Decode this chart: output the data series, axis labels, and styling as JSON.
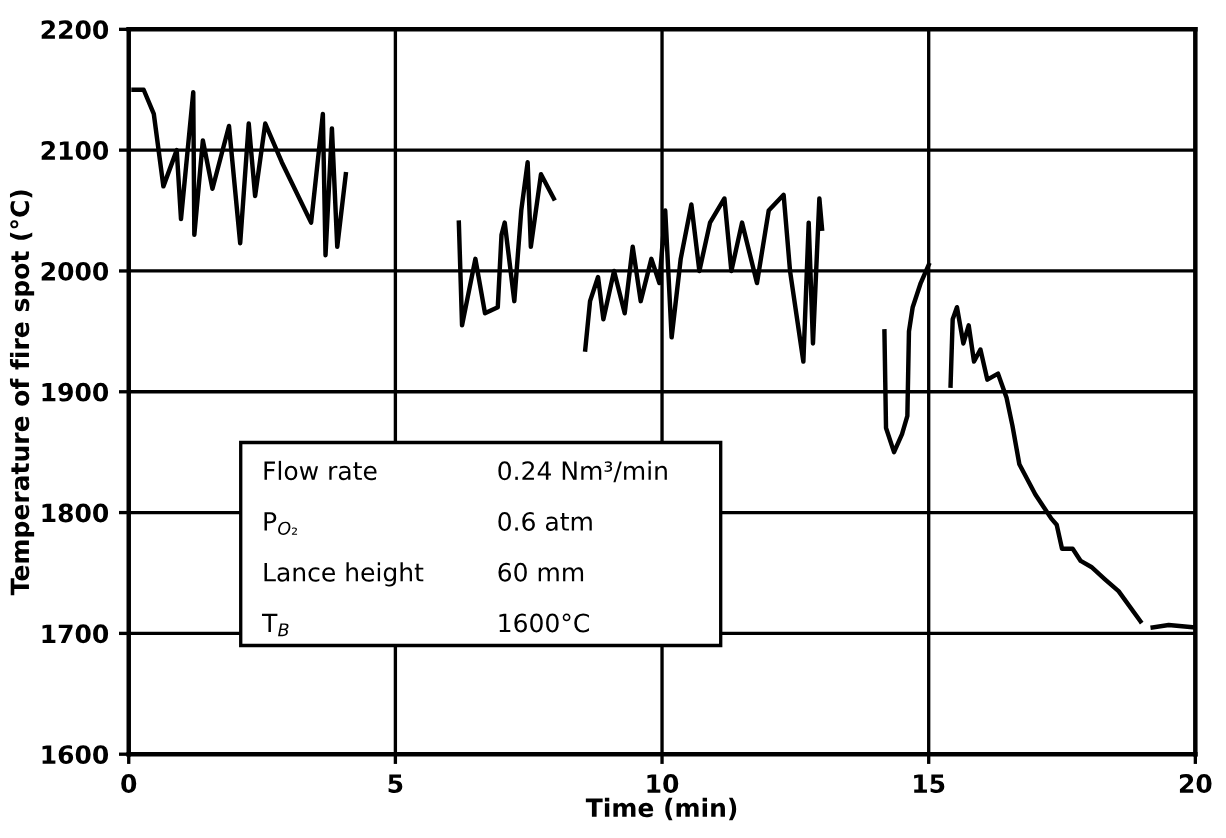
{
  "chart_data": {
    "type": "line",
    "xlabel": "Time (min)",
    "ylabel": "Temperature of fire spot (°C)",
    "xlim": [
      0,
      20
    ],
    "ylim": [
      1600,
      2200
    ],
    "xticks": [
      0,
      5,
      10,
      15,
      20
    ],
    "yticks": [
      1600,
      1700,
      1800,
      1900,
      2000,
      2100,
      2200
    ],
    "grid": true,
    "legend": false,
    "marker": "none",
    "line_style": "solid",
    "annotations": [
      "Flow rate",
      "0.24 Nm³/min",
      "P$_{O₂}$",
      "0.6 atm",
      "Lance height",
      "60 mm",
      "T$_{B}$",
      "1600°C"
    ],
    "series": [
      {
        "color": "#000000",
        "x": [
          0.09,
          0.28,
          0.47,
          0.65,
          0.9,
          0.98,
          1.21,
          1.23,
          1.39,
          1.57,
          1.88,
          2.09,
          2.25,
          2.37,
          2.56,
          2.87,
          3.42,
          3.64,
          3.69,
          3.81,
          3.91,
          4.07,
          5.0,
          6.19,
          6.25,
          6.5,
          6.68,
          6.92,
          6.99,
          7.05,
          7.23,
          7.36,
          7.48,
          7.54,
          7.73,
          7.97,
          8.3,
          8.56,
          8.65,
          8.8,
          8.9,
          9.1,
          9.3,
          9.45,
          9.6,
          9.8,
          9.95,
          10.06,
          10.18,
          10.35,
          10.55,
          10.7,
          10.9,
          11.17,
          11.3,
          11.5,
          11.78,
          12.0,
          12.28,
          12.4,
          12.65,
          12.75,
          12.83,
          12.95,
          13.0,
          13.5,
          14.17,
          14.2,
          14.35,
          14.5,
          14.6,
          14.63,
          14.7,
          14.85,
          15.0,
          15.2,
          15.41,
          15.45,
          15.53,
          15.65,
          15.75,
          15.85,
          15.97,
          16.1,
          16.3,
          16.46,
          16.57,
          16.7,
          17.0,
          17.3,
          17.4,
          17.5,
          17.7,
          17.85,
          18.05,
          18.3,
          18.56,
          18.97,
          19.1,
          19.2,
          19.5,
          19.96
        ],
        "values": [
          2150,
          2150,
          2130,
          2070,
          2100,
          2043,
          2148,
          2030,
          2108,
          2068,
          2120,
          2023,
          2122,
          2062,
          2122,
          2090,
          2040,
          2130,
          2013,
          2118,
          2020,
          2080,
          null,
          2040,
          1955,
          2010,
          1965,
          1970,
          2030,
          2040,
          1975,
          2050,
          2090,
          2020,
          2080,
          2060,
          null,
          1935,
          1975,
          1995,
          1960,
          2000,
          1965,
          2020,
          1975,
          2010,
          1990,
          2050,
          1945,
          2010,
          2055,
          2000,
          2040,
          2060,
          2000,
          2040,
          1990,
          2050,
          2063,
          2000,
          1925,
          2040,
          1940,
          2060,
          2035,
          null,
          1950,
          1870,
          1850,
          1865,
          1880,
          1950,
          1970,
          1990,
          2005,
          null,
          1905,
          1960,
          1970,
          1940,
          1955,
          1925,
          1935,
          1910,
          1915,
          1895,
          1872,
          1840,
          1815,
          1795,
          1790,
          1770,
          1770,
          1760,
          1755,
          1745,
          1735,
          1710,
          null,
          1705,
          1707,
          1705
        ]
      }
    ]
  }
}
